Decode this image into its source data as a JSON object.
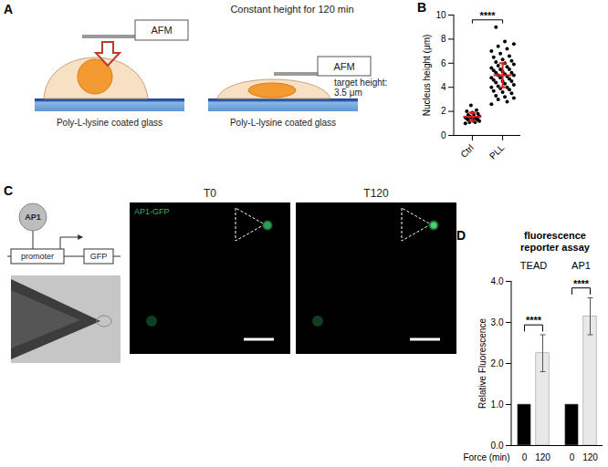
{
  "panel_labels": [
    "A",
    "B",
    "C",
    "D"
  ],
  "panel_A": {
    "instrument": "AFM",
    "substrate": "Poly-L-lysine coated glass",
    "condition": "Constant height for 120 min",
    "target_label": "target height:",
    "target_value": "3.5 μm"
  },
  "panel_C": {
    "factor": "AP1",
    "promoter": "promoter",
    "reporter": "GFP",
    "channel": "AP1-GFP",
    "timepoints": [
      "T0",
      "T120"
    ]
  },
  "chart_data": [
    {
      "type": "scatter",
      "categories": [
        "Ctrl",
        "PLL"
      ],
      "values": [
        [
          1.0,
          1.1,
          1.1,
          1.2,
          1.2,
          1.3,
          1.3,
          1.4,
          1.4,
          1.4,
          1.5,
          1.5,
          1.5,
          1.6,
          1.6,
          1.7,
          1.7,
          1.8,
          1.9,
          2.0,
          2.1,
          2.5
        ],
        [
          2.6,
          2.8,
          3.0,
          3.1,
          3.2,
          3.3,
          3.5,
          3.6,
          3.7,
          3.8,
          3.9,
          4.0,
          4.0,
          4.1,
          4.2,
          4.3,
          4.4,
          4.5,
          4.5,
          4.6,
          4.7,
          4.8,
          4.8,
          4.9,
          5.0,
          5.0,
          5.1,
          5.2,
          5.2,
          5.3,
          5.4,
          5.5,
          5.5,
          5.6,
          5.7,
          5.8,
          5.9,
          6.0,
          6.1,
          6.2,
          6.3,
          6.5,
          6.6,
          6.8,
          7.0,
          7.2,
          7.4,
          7.6,
          7.8,
          9.0
        ]
      ],
      "mean": [
        1.55,
        5.0
      ],
      "sd": [
        0.35,
        1.0
      ],
      "color": "#000000",
      "ylabel": "Nucleus height (μm)",
      "ylim": [
        0,
        10
      ],
      "yticks": [
        0,
        2,
        4,
        6,
        8,
        10
      ],
      "significance": "****"
    },
    {
      "type": "bar",
      "title": "fluorescence reporter assay",
      "groups": [
        "TEAD",
        "AP1"
      ],
      "categories": [
        "0",
        "120"
      ],
      "values": [
        [
          1,
          2.25
        ],
        [
          1,
          3.15
        ]
      ],
      "errors": [
        [
          null,
          0.45
        ],
        [
          null,
          0.45
        ]
      ],
      "colors": [
        "#000000",
        "#e8e8e8"
      ],
      "xlabel": "Force (min)",
      "ylabel": "Relative Fluorescence",
      "ylim": [
        0,
        4
      ],
      "yticks": [
        0,
        1,
        2,
        3,
        4
      ],
      "significance": "****"
    }
  ]
}
